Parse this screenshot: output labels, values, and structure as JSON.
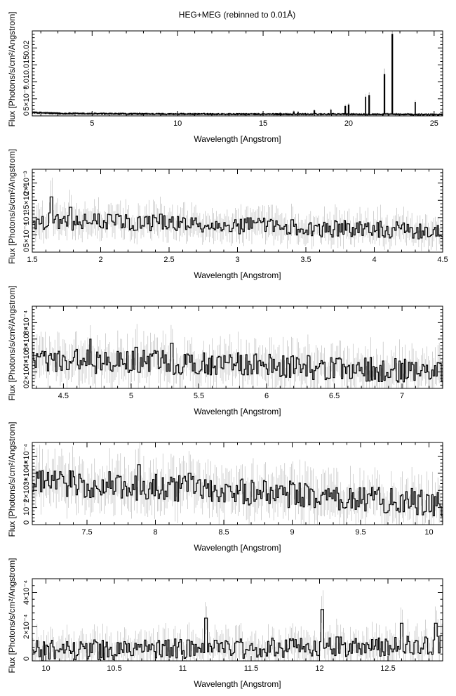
{
  "figure": {
    "title": "HEG+MEG (rebinned to 0.01Å)"
  },
  "chart_data": [
    {
      "type": "line",
      "style": "histogram-step with error bars",
      "xlabel": "Wavelength [Angstrom]",
      "ylabel": "Flux [Photons/s/cm²/Angstrom]",
      "xlim": [
        1.5,
        25.5
      ],
      "ylim": [
        0,
        0.025
      ],
      "xticks": [
        5,
        10,
        15,
        20,
        25
      ],
      "ytick_labels": [
        {
          "value": 0,
          "label": "0"
        },
        {
          "value": 0.005,
          "label": "5×10⁻³"
        },
        {
          "value": 0.01,
          "label": "0.01"
        },
        {
          "value": 0.015,
          "label": "0.015"
        },
        {
          "value": 0.02,
          "label": "0.02"
        }
      ],
      "continuum": [
        [
          1.5,
          0.001
        ],
        [
          3,
          0.0007
        ],
        [
          6,
          0.0006
        ],
        [
          10,
          0.00055
        ],
        [
          15,
          0.0005
        ],
        [
          20,
          0.0005
        ],
        [
          25.5,
          0.0004
        ]
      ],
      "noise": 0.0002,
      "lines": [
        {
          "x": 16.0,
          "y": 0.0008
        },
        {
          "x": 16.8,
          "y": 0.0012
        },
        {
          "x": 17.05,
          "y": 0.0011
        },
        {
          "x": 18.0,
          "y": 0.0015
        },
        {
          "x": 18.97,
          "y": 0.0017
        },
        {
          "x": 19.8,
          "y": 0.0028
        },
        {
          "x": 20.0,
          "y": 0.0032
        },
        {
          "x": 21.0,
          "y": 0.0055
        },
        {
          "x": 21.2,
          "y": 0.006
        },
        {
          "x": 22.1,
          "y": 0.0122
        },
        {
          "x": 22.55,
          "y": 0.024
        },
        {
          "x": 23.9,
          "y": 0.004
        }
      ],
      "grid": false
    },
    {
      "type": "line",
      "style": "histogram-step with error bars",
      "xlabel": "Wavelength [Angstrom]",
      "ylabel": "Flux [Photons/s/cm²/Angstrom]",
      "xlim": [
        1.5,
        4.5
      ],
      "ylim": [
        0,
        0.0024
      ],
      "xticks": [
        1.5,
        2,
        2.5,
        3,
        3.5,
        4,
        4.5
      ],
      "ytick_labels": [
        {
          "value": 0,
          "label": "0"
        },
        {
          "value": 0.0005,
          "label": "5×10⁻⁴"
        },
        {
          "value": 0.001,
          "label": "10⁻³"
        },
        {
          "value": 0.0015,
          "label": "1.5×10⁻³"
        },
        {
          "value": 0.002,
          "label": "2×10⁻³"
        }
      ],
      "continuum": [
        [
          1.5,
          0.0009
        ],
        [
          2.5,
          0.00085
        ],
        [
          3.5,
          0.0007
        ],
        [
          4.5,
          0.0006
        ]
      ],
      "noise": 0.00025,
      "lines": [
        {
          "x": 1.64,
          "y": 0.0016
        },
        {
          "x": 1.78,
          "y": 0.0013
        },
        {
          "x": 2.44,
          "y": 0.0011
        }
      ],
      "grid": false
    },
    {
      "type": "line",
      "style": "histogram-step with error bars",
      "xlabel": "Wavelength [Angstrom]",
      "ylabel": "Flux [Photons/s/cm²/Angstrom]",
      "xlim": [
        4.27,
        7.3
      ],
      "ylim": [
        0,
        0.001
      ],
      "xticks": [
        4.5,
        5,
        5.5,
        6,
        6.5,
        7
      ],
      "ytick_labels": [
        {
          "value": 0,
          "label": "0"
        },
        {
          "value": 0.0002,
          "label": "2×10⁻⁴"
        },
        {
          "value": 0.0004,
          "label": "4×10⁻⁴"
        },
        {
          "value": 0.0006,
          "label": "6×10⁻⁴"
        },
        {
          "value": 0.0008,
          "label": "8×10⁻⁴"
        }
      ],
      "continuum": [
        [
          4.27,
          0.00035
        ],
        [
          5.5,
          0.0003
        ],
        [
          6.5,
          0.00025
        ],
        [
          7.3,
          0.0002
        ]
      ],
      "noise": 0.00015,
      "lines": [
        {
          "x": 4.7,
          "y": 0.0006
        },
        {
          "x": 5.04,
          "y": 0.0005
        },
        {
          "x": 5.3,
          "y": 0.00055
        }
      ],
      "grid": false
    },
    {
      "type": "line",
      "style": "histogram-step with error bars",
      "xlabel": "Wavelength [Angstrom]",
      "ylabel": "Flux [Photons/s/cm²/Angstrom]",
      "xlim": [
        7.1,
        10.1
      ],
      "ylim": [
        0,
        0.00048
      ],
      "xticks": [
        7.5,
        8,
        8.5,
        9,
        9.5,
        10
      ],
      "ytick_labels": [
        {
          "value": 0,
          "label": "0"
        },
        {
          "value": 0.0001,
          "label": "10⁻⁴"
        },
        {
          "value": 0.0002,
          "label": "2×10⁻⁴"
        },
        {
          "value": 0.0003,
          "label": "3×10⁻⁴"
        },
        {
          "value": 0.0004,
          "label": "4×10⁻⁴"
        }
      ],
      "continuum": [
        [
          7.1,
          0.00025
        ],
        [
          8.5,
          0.0002
        ],
        [
          10.1,
          0.00012
        ]
      ],
      "noise": 8e-05,
      "lines": [
        {
          "x": 7.88,
          "y": 0.00035
        },
        {
          "x": 8.25,
          "y": 0.0003
        }
      ],
      "grid": false
    },
    {
      "type": "line",
      "style": "histogram-step with error bars",
      "xlabel": "Wavelength [Angstrom]",
      "ylabel": "Flux [Photons/s/cm²/Angstrom]",
      "xlim": [
        9.9,
        12.9
      ],
      "ylim": [
        0,
        0.00048
      ],
      "xticks": [
        10,
        10.5,
        11,
        11.5,
        12,
        12.5
      ],
      "ytick_labels": [
        {
          "value": 0,
          "label": "0"
        },
        {
          "value": 0.0002,
          "label": "2×10⁻⁴"
        },
        {
          "value": 0.0004,
          "label": "4×10⁻⁴"
        }
      ],
      "continuum": [
        [
          9.9,
          6e-05
        ],
        [
          11,
          7e-05
        ],
        [
          12,
          8e-05
        ],
        [
          12.9,
          9e-05
        ]
      ],
      "noise": 6e-05,
      "lines": [
        {
          "x": 11.17,
          "y": 0.00025
        },
        {
          "x": 12.02,
          "y": 0.0003
        },
        {
          "x": 12.13,
          "y": 0.00014
        },
        {
          "x": 12.6,
          "y": 0.00022
        },
        {
          "x": 12.85,
          "y": 0.00022
        }
      ],
      "grid": false
    }
  ]
}
